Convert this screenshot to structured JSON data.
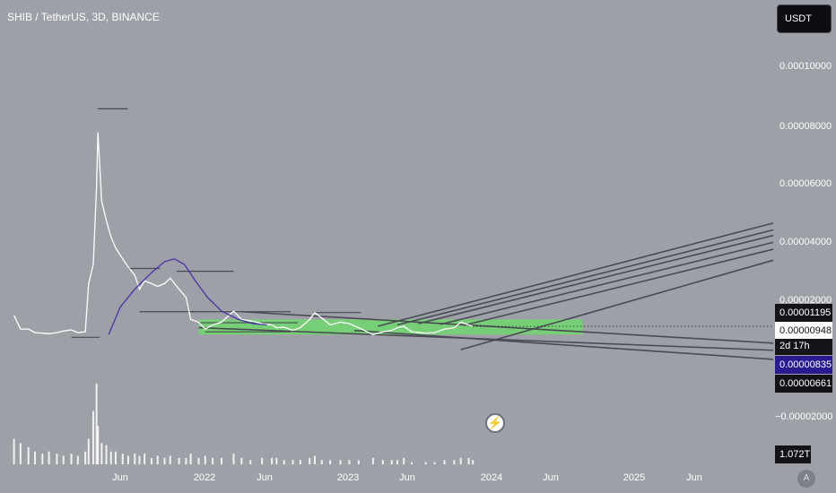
{
  "header": {
    "title": "SHIB / TetherUS, 3D, BINANCE",
    "currency_button": "USDT"
  },
  "colors": {
    "background": "#9ea0a8",
    "candles": "#ffffff",
    "volume": "#ffffff",
    "trendlines": "#4a4b52",
    "moving_average": "#4b2fa8",
    "range_box": "#6fd66f",
    "price_line": "#1f1f25"
  },
  "chart_data": {
    "type": "line",
    "title": "SHIB / TetherUS, 3D, BINANCE",
    "xlabel": "",
    "ylabel": "",
    "x_ticks": [
      "Jun",
      "2022",
      "Jun",
      "2023",
      "Jun",
      "2024",
      "Jun",
      "2025",
      "Jun"
    ],
    "y_ticks": [
      "0.00010000",
      "0.00008000",
      "0.00006000",
      "0.00004000",
      "0.00002000",
      "−0.00002000"
    ],
    "ylim": [
      -2.5e-05,
      0.000115
    ],
    "xlim": [
      "2021-04-01",
      "2025-10-15"
    ],
    "grid": false,
    "price_labels": [
      {
        "text": "0.00001195",
        "style": "black"
      },
      {
        "text": "0.00000948",
        "style": "white"
      },
      {
        "text": "2d 17h",
        "style": "countdown"
      },
      {
        "text": "0.00000835",
        "style": "purple"
      },
      {
        "text": "0.00000661",
        "style": "black"
      }
    ],
    "volume_label": "1.072T",
    "series": [
      {
        "values": [
          [
            "2021-05-01",
            1.35e-05
          ],
          [
            "2021-05-15",
            8.5e-06
          ],
          [
            "2021-06-01",
            8.5e-06
          ],
          [
            "2021-06-15",
            7.2e-06
          ],
          [
            "2021-07-01",
            7e-06
          ],
          [
            "2021-07-15",
            6.8e-06
          ],
          [
            "2021-08-01",
            7.2e-06
          ],
          [
            "2021-08-15",
            7.8e-06
          ],
          [
            "2021-09-01",
            8.2e-06
          ],
          [
            "2021-09-15",
            7.2e-06
          ],
          [
            "2021-10-01",
            7.5e-06
          ],
          [
            "2021-10-08",
            2.5e-05
          ],
          [
            "2021-10-18",
            3.2e-05
          ],
          [
            "2021-10-25",
            6e-05
          ],
          [
            "2021-10-28",
            8e-05
          ],
          [
            "2021-11-05",
            5.5e-05
          ],
          [
            "2021-11-15",
            4.8e-05
          ],
          [
            "2021-11-25",
            4.2e-05
          ],
          [
            "2021-12-05",
            3.8e-05
          ],
          [
            "2021-12-20",
            3.4e-05
          ],
          [
            "2022-01-01",
            3.1e-05
          ],
          [
            "2022-01-15",
            2.8e-05
          ],
          [
            "2022-01-25",
            2.3e-05
          ],
          [
            "2022-02-05",
            2.6e-05
          ],
          [
            "2022-02-20",
            2.5e-05
          ],
          [
            "2022-03-05",
            2.4e-05
          ],
          [
            "2022-03-20",
            2.5e-05
          ],
          [
            "2022-04-01",
            2.7e-05
          ],
          [
            "2022-04-20",
            2.3e-05
          ],
          [
            "2022-05-05",
            2e-05
          ],
          [
            "2022-05-15",
            1.2e-05
          ],
          [
            "2022-06-01",
            1.1e-05
          ],
          [
            "2022-06-15",
            8.5e-06
          ],
          [
            "2022-07-01",
            1e-05
          ],
          [
            "2022-07-20",
            1.1e-05
          ],
          [
            "2022-08-15",
            1.5e-05
          ],
          [
            "2022-09-01",
            1.2e-05
          ],
          [
            "2022-09-20",
            1.15e-05
          ],
          [
            "2022-10-15",
            1.05e-05
          ],
          [
            "2022-11-05",
            1e-05
          ],
          [
            "2022-11-15",
            9e-06
          ],
          [
            "2022-12-01",
            9.2e-06
          ],
          [
            "2022-12-20",
            8e-06
          ],
          [
            "2023-01-05",
            9e-06
          ],
          [
            "2023-01-25",
            1.2e-05
          ],
          [
            "2023-02-05",
            1.45e-05
          ],
          [
            "2023-02-20",
            1.25e-05
          ],
          [
            "2023-03-10",
            1e-05
          ],
          [
            "2023-04-01",
            1.1e-05
          ],
          [
            "2023-04-20",
            1.05e-05
          ],
          [
            "2023-05-10",
            9e-06
          ],
          [
            "2023-06-10",
            6.5e-06
          ],
          [
            "2023-07-01",
            7.5e-06
          ],
          [
            "2023-07-20",
            8e-06
          ],
          [
            "2023-08-01",
            9e-06
          ],
          [
            "2023-08-15",
            9.5e-06
          ],
          [
            "2023-09-01",
            7.5e-06
          ],
          [
            "2023-10-01",
            7e-06
          ],
          [
            "2023-10-20",
            7.2e-06
          ],
          [
            "2023-11-10",
            8.5e-06
          ],
          [
            "2023-12-01",
            9e-06
          ],
          [
            "2023-12-15",
            1.1e-05
          ],
          [
            "2024-01-01",
            1e-05
          ],
          [
            "2024-01-10",
            9.5e-06
          ]
        ]
      },
      {
        "values": [
          [
            "2021-11-20",
            6.5e-06
          ],
          [
            "2021-12-15",
            1.65e-05
          ],
          [
            "2022-01-15",
            2.3e-05
          ],
          [
            "2022-02-20",
            2.9e-05
          ],
          [
            "2022-03-20",
            3.3e-05
          ],
          [
            "2022-04-10",
            3.4e-05
          ],
          [
            "2022-05-01",
            3.2e-05
          ],
          [
            "2022-05-25",
            2.6e-05
          ],
          [
            "2022-06-20",
            2e-05
          ],
          [
            "2022-07-20",
            1.5e-05
          ],
          [
            "2022-08-25",
            1.2e-05
          ],
          [
            "2022-09-25",
            1.05e-05
          ],
          [
            "2022-10-25",
            1e-05
          ]
        ]
      }
    ],
    "volume": [
      [
        "2021-05-01",
        0.12
      ],
      [
        "2021-05-15",
        0.1
      ],
      [
        "2021-06-01",
        0.08
      ],
      [
        "2021-06-15",
        0.06
      ],
      [
        "2021-07-01",
        0.05
      ],
      [
        "2021-07-15",
        0.06
      ],
      [
        "2021-08-01",
        0.05
      ],
      [
        "2021-08-15",
        0.04
      ],
      [
        "2021-09-01",
        0.05
      ],
      [
        "2021-09-15",
        0.04
      ],
      [
        "2021-10-01",
        0.06
      ],
      [
        "2021-10-08",
        0.12
      ],
      [
        "2021-10-18",
        0.25
      ],
      [
        "2021-10-25",
        0.38
      ],
      [
        "2021-10-28",
        0.18
      ],
      [
        "2021-11-05",
        0.1
      ],
      [
        "2021-11-15",
        0.09
      ],
      [
        "2021-11-25",
        0.06
      ],
      [
        "2021-12-05",
        0.06
      ],
      [
        "2021-12-20",
        0.05
      ],
      [
        "2022-01-01",
        0.04
      ],
      [
        "2022-01-15",
        0.05
      ],
      [
        "2022-01-25",
        0.04
      ],
      [
        "2022-02-05",
        0.05
      ],
      [
        "2022-02-20",
        0.03
      ],
      [
        "2022-03-05",
        0.04
      ],
      [
        "2022-03-20",
        0.03
      ],
      [
        "2022-04-01",
        0.04
      ],
      [
        "2022-04-20",
        0.03
      ],
      [
        "2022-05-05",
        0.03
      ],
      [
        "2022-05-15",
        0.05
      ],
      [
        "2022-06-01",
        0.03
      ],
      [
        "2022-06-15",
        0.04
      ],
      [
        "2022-07-01",
        0.03
      ],
      [
        "2022-07-20",
        0.03
      ],
      [
        "2022-08-15",
        0.05
      ],
      [
        "2022-09-01",
        0.03
      ],
      [
        "2022-09-20",
        0.02
      ],
      [
        "2022-10-15",
        0.03
      ],
      [
        "2022-11-05",
        0.03
      ],
      [
        "2022-11-15",
        0.03
      ],
      [
        "2022-12-01",
        0.02
      ],
      [
        "2022-12-20",
        0.02
      ],
      [
        "2023-01-05",
        0.02
      ],
      [
        "2023-01-25",
        0.03
      ],
      [
        "2023-02-05",
        0.04
      ],
      [
        "2023-02-20",
        0.02
      ],
      [
        "2023-03-10",
        0.02
      ],
      [
        "2023-04-01",
        0.02
      ],
      [
        "2023-04-20",
        0.02
      ],
      [
        "2023-05-10",
        0.02
      ],
      [
        "2023-06-10",
        0.03
      ],
      [
        "2023-07-01",
        0.02
      ],
      [
        "2023-07-20",
        0.02
      ],
      [
        "2023-08-01",
        0.02
      ],
      [
        "2023-08-15",
        0.03
      ],
      [
        "2023-09-01",
        0.01
      ],
      [
        "2023-10-01",
        0.01
      ],
      [
        "2023-10-20",
        0.01
      ],
      [
        "2023-11-10",
        0.02
      ],
      [
        "2023-12-01",
        0.02
      ],
      [
        "2023-12-15",
        0.03
      ],
      [
        "2024-01-01",
        0.03
      ],
      [
        "2024-01-10",
        0.02
      ]
    ],
    "range_box": {
      "x_start": "2022-06-01",
      "x_end": "2024-09-01",
      "y_low": 6.5e-06,
      "y_high": 1.2e-05
    },
    "horizontal_levels": [
      {
        "x_start": "2021-10-28",
        "x_end": "2021-12-31",
        "y": 8.85e-05
      },
      {
        "x_start": "2021-09-01",
        "x_end": "2021-11-01",
        "y": 5.5e-06
      },
      {
        "x_start": "2022-01-01",
        "x_end": "2022-03-10",
        "y": 3.05e-05
      },
      {
        "x_start": "2022-04-15",
        "x_end": "2022-08-15",
        "y": 2.95e-05
      },
      {
        "x_start": "2022-01-25",
        "x_end": "2022-05-25",
        "y": 1.48e-05
      },
      {
        "x_start": "2022-05-15",
        "x_end": "2022-12-15",
        "y": 1.48e-05
      },
      {
        "x_start": "2022-06-15",
        "x_end": "2022-12-15",
        "y": 7.5e-06
      },
      {
        "x_start": "2023-02-01",
        "x_end": "2023-05-15",
        "y": 1.45e-05
      },
      {
        "x_start": "2022-06-01",
        "x_end": "2022-12-31",
        "y": 1.08e-05
      }
    ],
    "trendlines": [
      {
        "x1": "2022-09-01",
        "y1": 1.48e-05,
        "x2": "2025-10-15",
        "y2": 3.4e-06
      },
      {
        "x1": "2022-06-01",
        "y1": 9e-06,
        "x2": "2025-10-15",
        "y2": 8e-07
      },
      {
        "x1": "2023-05-01",
        "y1": 8e-06,
        "x2": "2025-10-15",
        "y2": -2.5e-06
      },
      {
        "x1": "2023-06-20",
        "y1": 9.5e-06,
        "x2": "2025-10-15",
        "y2": 4.7e-05
      },
      {
        "x1": "2023-08-01",
        "y1": 1e-05,
        "x2": "2025-10-15",
        "y2": 4.45e-05
      },
      {
        "x1": "2023-09-15",
        "y1": 1.05e-05,
        "x2": "2025-10-15",
        "y2": 4.25e-05
      },
      {
        "x1": "2023-11-01",
        "y1": 1.02e-05,
        "x2": "2025-10-15",
        "y2": 4e-05
      },
      {
        "x1": "2023-12-20",
        "y1": 9.8e-06,
        "x2": "2025-10-15",
        "y2": 3.75e-05
      },
      {
        "x1": "2023-12-15",
        "y1": 1e-06,
        "x2": "2025-10-15",
        "y2": 3.35e-05
      }
    ]
  }
}
